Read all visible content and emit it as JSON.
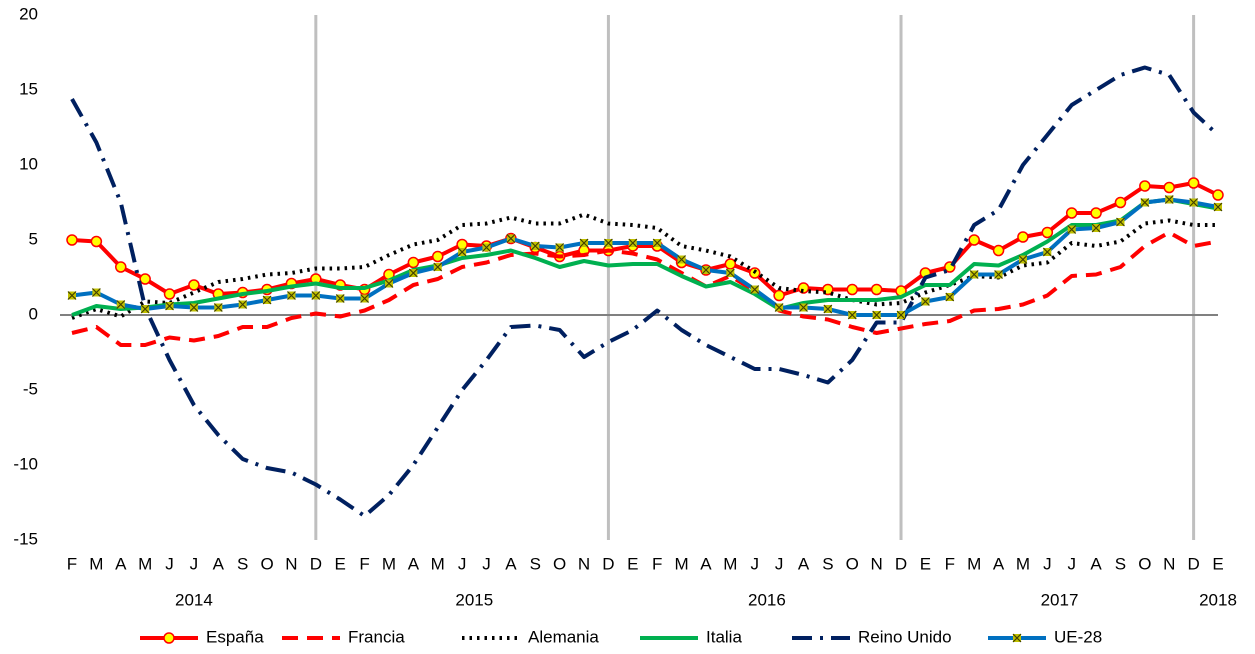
{
  "chart_data": {
    "type": "line",
    "categories": [
      "F",
      "M",
      "A",
      "M",
      "J",
      "J",
      "A",
      "S",
      "O",
      "N",
      "D",
      "E",
      "F",
      "M",
      "A",
      "M",
      "J",
      "J",
      "A",
      "S",
      "O",
      "N",
      "D",
      "E",
      "F",
      "M",
      "A",
      "M",
      "J",
      "J",
      "A",
      "S",
      "O",
      "N",
      "D",
      "E",
      "F",
      "M",
      "A",
      "M",
      "J",
      "J",
      "A",
      "S",
      "O",
      "N",
      "D",
      "E"
    ],
    "year_labels": [
      "2014",
      "2015",
      "2016",
      "2017",
      "2018"
    ],
    "ylim": [
      -15,
      20
    ],
    "yticks": [
      -15,
      -10,
      -5,
      0,
      5,
      10,
      15,
      20
    ],
    "legend": "bottom",
    "series": [
      {
        "name": "España",
        "color": "#ff0000",
        "style": "solid",
        "marker": "circle",
        "marker_color": "#ffff00",
        "values": [
          5.0,
          4.9,
          3.2,
          2.4,
          1.4,
          2.0,
          1.4,
          1.5,
          1.7,
          2.1,
          2.4,
          2.0,
          1.7,
          2.7,
          3.5,
          3.9,
          4.7,
          4.6,
          5.1,
          4.5,
          3.9,
          4.3,
          4.3,
          4.6,
          4.6,
          3.5,
          3.0,
          3.4,
          2.8,
          1.3,
          1.8,
          1.7,
          1.7,
          1.7,
          1.6,
          2.8,
          3.2,
          5.0,
          4.3,
          5.2,
          5.5,
          6.8,
          6.8,
          7.5,
          8.6,
          8.5,
          8.8,
          8.0
        ]
      },
      {
        "name": "Francia",
        "color": "#ff0000",
        "style": "dashed",
        "values": [
          -1.2,
          -0.8,
          -2.0,
          -2.0,
          -1.5,
          -1.7,
          -1.4,
          -0.8,
          -0.8,
          -0.2,
          0.1,
          -0.1,
          0.3,
          1.0,
          2.0,
          2.4,
          3.2,
          3.5,
          4.0,
          4.1,
          3.9,
          4.0,
          4.3,
          4.1,
          3.7,
          2.8,
          1.9,
          2.6,
          1.6,
          0.3,
          -0.1,
          -0.3,
          -0.8,
          -1.2,
          -0.9,
          -0.6,
          -0.4,
          0.3,
          0.4,
          0.7,
          1.3,
          2.6,
          2.7,
          3.2,
          4.6,
          5.5,
          4.6,
          4.9
        ]
      },
      {
        "name": "Alemania",
        "color": "#000000",
        "style": "dotted",
        "values": [
          -0.2,
          0.4,
          -0.1,
          0.9,
          0.8,
          1.5,
          2.2,
          2.4,
          2.7,
          2.8,
          3.1,
          3.1,
          3.2,
          4.0,
          4.7,
          5.0,
          6.0,
          6.1,
          6.5,
          6.1,
          6.1,
          6.7,
          6.1,
          6.0,
          5.8,
          4.6,
          4.3,
          3.9,
          2.9,
          1.8,
          1.6,
          1.5,
          1.0,
          0.7,
          0.8,
          1.5,
          2.0,
          2.6,
          2.5,
          3.3,
          3.5,
          4.8,
          4.6,
          4.9,
          6.1,
          6.3,
          6.0,
          6.0
        ]
      },
      {
        "name": "Italia",
        "color": "#00b050",
        "style": "solid",
        "values": [
          0.0,
          0.6,
          0.4,
          0.5,
          0.7,
          0.8,
          1.1,
          1.4,
          1.6,
          1.9,
          2.1,
          1.8,
          1.8,
          2.3,
          3.0,
          3.3,
          3.8,
          4.0,
          4.3,
          3.8,
          3.2,
          3.6,
          3.3,
          3.4,
          3.4,
          2.6,
          1.9,
          2.2,
          1.4,
          0.4,
          0.8,
          1.0,
          1.0,
          1.0,
          1.2,
          2.0,
          2.0,
          3.4,
          3.3,
          4.0,
          4.9,
          6.0,
          6.0,
          6.3,
          7.5,
          7.7,
          7.4,
          7.1
        ]
      },
      {
        "name": "Reino Unido",
        "color": "#002060",
        "style": "dashdot",
        "values": [
          14.4,
          11.5,
          7.5,
          0.5,
          -3.0,
          -6.0,
          -8.0,
          -9.6,
          -10.2,
          -10.5,
          -11.3,
          -12.3,
          -13.4,
          -12.0,
          -10.0,
          -7.5,
          -5.0,
          -3.0,
          -0.8,
          -0.7,
          -1.0,
          -2.8,
          -1.8,
          -1.0,
          0.3,
          -1.0,
          -2.0,
          -2.8,
          -3.6,
          -3.6,
          -4.0,
          -4.5,
          -3.0,
          -0.5,
          -0.5,
          2.5,
          3.0,
          6.0,
          7.0,
          10.0,
          12.0,
          14.0,
          15.0,
          16.0,
          16.5,
          16.0,
          13.5,
          12.0
        ]
      },
      {
        "name": "UE-28",
        "color": "#0070c0",
        "style": "solid",
        "marker": "x",
        "marker_color": "#c0c000",
        "values": [
          1.3,
          1.5,
          0.7,
          0.4,
          0.6,
          0.5,
          0.5,
          0.7,
          1.0,
          1.3,
          1.3,
          1.1,
          1.1,
          2.1,
          2.8,
          3.2,
          4.2,
          4.5,
          5.1,
          4.6,
          4.5,
          4.8,
          4.8,
          4.8,
          4.8,
          3.7,
          3.0,
          2.8,
          1.7,
          0.5,
          0.5,
          0.4,
          0.0,
          0.0,
          0.0,
          0.9,
          1.2,
          2.7,
          2.7,
          3.7,
          4.2,
          5.7,
          5.8,
          6.2,
          7.5,
          7.7,
          7.5,
          7.2
        ]
      }
    ]
  }
}
